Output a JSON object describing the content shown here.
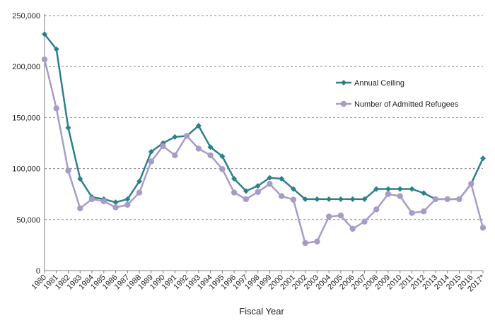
{
  "chart_data": {
    "type": "line",
    "title": "",
    "xlabel": "Fiscal Year",
    "ylabel": "",
    "ylim": [
      0,
      250000
    ],
    "y_ticks": [
      "0",
      "50,000",
      "100,000",
      "150,000",
      "200,000",
      "250,000"
    ],
    "y_tick_values": [
      0,
      50000,
      100000,
      150000,
      200000,
      250000
    ],
    "grid": "horizontal dashed",
    "legend_position": "right",
    "categories": [
      "1980",
      "1981",
      "1982",
      "1983",
      "1984",
      "1985",
      "1986",
      "1987",
      "1988",
      "1989",
      "1990",
      "1991",
      "1992",
      "1993",
      "1994",
      "1995",
      "1996",
      "1997",
      "1998",
      "1999",
      "2000",
      "2001",
      "2002",
      "2003",
      "2004",
      "2005",
      "2006",
      "2007",
      "2008",
      "2009",
      "2010",
      "2011",
      "2012",
      "2013",
      "2014",
      "2015",
      "2016",
      "2017*"
    ],
    "series": [
      {
        "name": "Annual Ceiling",
        "color": "#2e7f8c",
        "marker": "diamond",
        "values": [
          231700,
          217000,
          140000,
          90000,
          72000,
          70000,
          67000,
          70000,
          87500,
          116500,
          125000,
          131000,
          132000,
          142000,
          121000,
          112000,
          90000,
          78000,
          83000,
          91000,
          90000,
          80000,
          70000,
          70000,
          70000,
          70000,
          70000,
          70000,
          80000,
          80000,
          80000,
          80000,
          76000,
          70000,
          70000,
          70000,
          85000,
          110000
        ]
      },
      {
        "name": "Number of Admitted Refugees",
        "color": "#a99bc8",
        "marker": "circle",
        "values": [
          207000,
          159000,
          98000,
          61000,
          70000,
          68000,
          62000,
          64500,
          76500,
          107000,
          122000,
          113000,
          132000,
          119500,
          113000,
          99500,
          76500,
          70000,
          77000,
          85000,
          73000,
          69500,
          27000,
          28500,
          53000,
          54000,
          41000,
          48000,
          60000,
          75000,
          73000,
          56500,
          58000,
          70000,
          70000,
          70000,
          85000,
          42000
        ]
      }
    ]
  }
}
